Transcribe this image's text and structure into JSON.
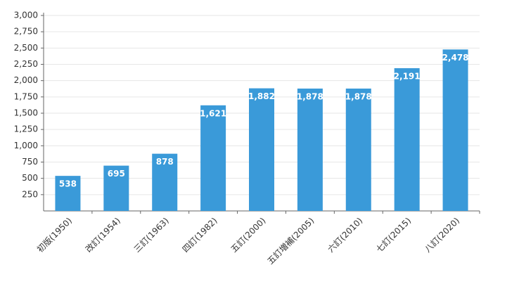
{
  "chart_data": {
    "type": "bar",
    "categories": [
      "初版(1950)",
      "改訂(1954)",
      "三訂(1963)",
      "四訂(1982)",
      "五訂(2000)",
      "五訂増補(2005)",
      "六訂(2010)",
      "七訂(2015)",
      "八訂(2020)"
    ],
    "values": [
      538,
      695,
      878,
      1621,
      1882,
      1878,
      1878,
      2191,
      2478
    ],
    "value_labels": [
      "538",
      "695",
      "878",
      "1,621",
      "1,882",
      "1,878",
      "1,878",
      "2,191",
      "2,478"
    ],
    "color": "#3a9ad9",
    "ylim": [
      0,
      3000
    ],
    "yticks": [
      250,
      500,
      750,
      {
        "value": 1000,
        "label": "1,000"
      },
      {
        "value": 1250,
        "label": "1,250"
      },
      {
        "value": 1500,
        "label": "1,500"
      },
      {
        "value": 1750,
        "label": "1,750"
      },
      {
        "value": 2000,
        "label": "2,000"
      },
      {
        "value": 2250,
        "label": "2,250"
      },
      {
        "value": 2500,
        "label": "2,500"
      },
      {
        "value": 2750,
        "label": "2,750"
      },
      {
        "value": 3000,
        "label": "3,000"
      }
    ],
    "grid": true
  }
}
